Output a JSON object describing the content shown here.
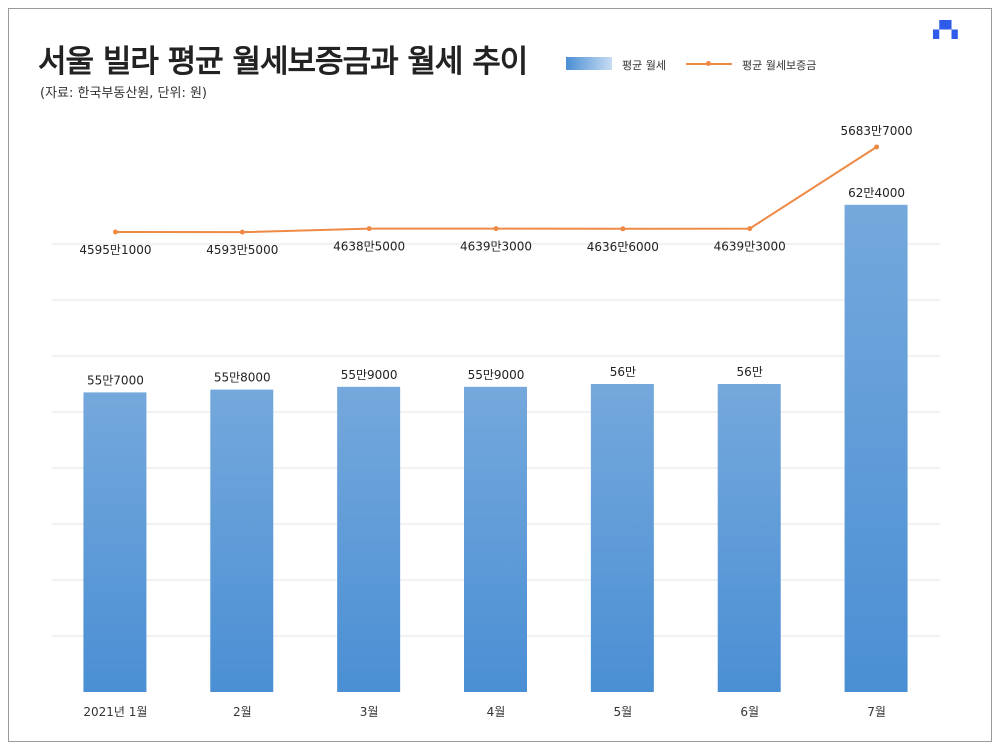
{
  "title": "서울 빌라 평균 월세보증금과 월세 추이",
  "subtitle": "(자료: 한국부동산원, 단위: 원)",
  "logo": "다방",
  "colors": {
    "bar_top": "#75a8dc",
    "bar_bottom": "#4a8fd4",
    "line": "#ee8a44",
    "grid": "#e4e4e4",
    "logo": "#2f5bea"
  },
  "chart_data": {
    "type": "bar+line",
    "title": "서울 빌라 평균 월세보증금과 월세 추이",
    "categories": [
      "2021년 1월",
      "2월",
      "3월",
      "4월",
      "5월",
      "6월",
      "7월"
    ],
    "legend_position": "top-right",
    "grid": true,
    "series": [
      {
        "name": "평균 월세",
        "type": "bar",
        "values": [
          557000,
          558000,
          559000,
          559000,
          560000,
          560000,
          624000
        ],
        "labels": [
          "55만7000",
          "55만8000",
          "55만9000",
          "55만9000",
          "56만",
          "56만",
          "62만4000"
        ]
      },
      {
        "name": "평균 월세보증금",
        "type": "line",
        "values": [
          45951000,
          45935000,
          46385000,
          46393000,
          46366000,
          46393000,
          56837000
        ],
        "labels": [
          "4595만1000",
          "4593만5000",
          "4638만5000",
          "4639만3000",
          "4636만6000",
          "4639만3000",
          "5683만7000"
        ]
      }
    ],
    "ylim": [
      450000,
      630000
    ],
    "y2lim": [
      -12940000,
      51590000
    ]
  }
}
